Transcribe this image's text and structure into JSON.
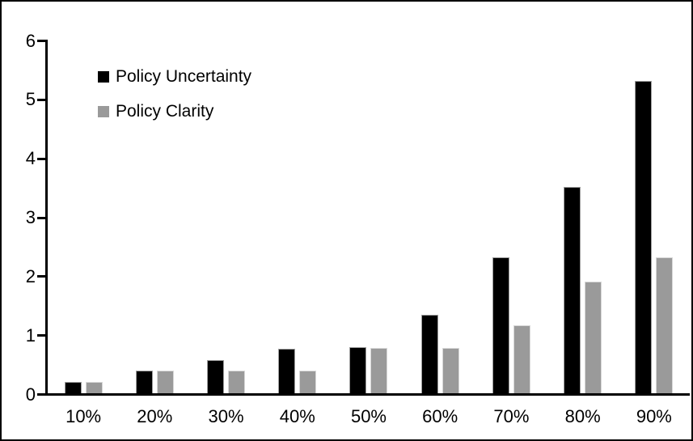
{
  "chart_data": {
    "type": "bar",
    "title": "",
    "xlabel": "",
    "ylabel": "",
    "categories": [
      "10%",
      "20%",
      "30%",
      "40%",
      "50%",
      "60%",
      "70%",
      "80%",
      "90%"
    ],
    "series": [
      {
        "name": "Policy Uncertainty",
        "color": "#000000",
        "edge_color": "#9e9e9e",
        "values": [
          0.19,
          0.38,
          0.57,
          0.76,
          0.78,
          1.33,
          2.31,
          3.5,
          5.3
        ]
      },
      {
        "name": "Policy Clarity",
        "color": "#9a9a9a",
        "edge_color": "#d8d8d8",
        "values": [
          0.19,
          0.38,
          0.38,
          0.38,
          0.77,
          0.77,
          1.15,
          1.9,
          2.3
        ]
      }
    ],
    "ylim": [
      0,
      6
    ],
    "y_ticks": [
      "0",
      "1",
      "2",
      "3",
      "4",
      "5",
      "6"
    ],
    "grid": "off",
    "legend_position": "top-left",
    "frame_color": "#000000",
    "background_color": "#ffffff"
  }
}
